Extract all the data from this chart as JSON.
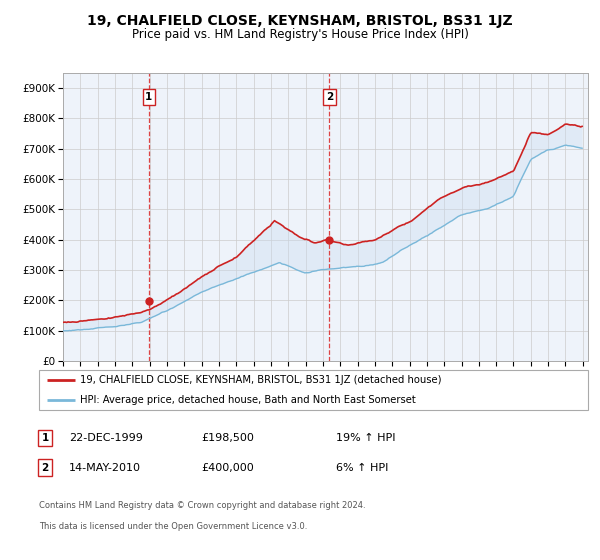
{
  "title": "19, CHALFIELD CLOSE, KEYNSHAM, BRISTOL, BS31 1JZ",
  "subtitle": "Price paid vs. HM Land Registry's House Price Index (HPI)",
  "legend_line1": "19, CHALFIELD CLOSE, KEYNSHAM, BRISTOL, BS31 1JZ (detached house)",
  "legend_line2": "HPI: Average price, detached house, Bath and North East Somerset",
  "transaction1_date": "22-DEC-1999",
  "transaction1_price": 198500,
  "transaction1_note": "19% ↑ HPI",
  "transaction2_date": "14-MAY-2010",
  "transaction2_price": 400000,
  "transaction2_note": "6% ↑ HPI",
  "footer_line1": "Contains HM Land Registry data © Crown copyright and database right 2024.",
  "footer_line2": "This data is licensed under the Open Government Licence v3.0.",
  "hpi_color": "#7ab8d9",
  "price_color": "#cc2222",
  "vline_color": "#dd4444",
  "fill_color": "#c8dcf0",
  "background_color": "#ffffff",
  "grid_color": "#cccccc",
  "chart_bg": "#eef3fa",
  "ylim": [
    0,
    950000
  ],
  "yticks": [
    0,
    100000,
    200000,
    300000,
    400000,
    500000,
    600000,
    700000,
    800000,
    900000
  ],
  "ytick_labels": [
    "£0",
    "£100K",
    "£200K",
    "£300K",
    "£400K",
    "£500K",
    "£600K",
    "£700K",
    "£800K",
    "£900K"
  ],
  "hpi_keypoints_x": [
    1995.0,
    1996.5,
    1998.0,
    1999.5,
    2001.0,
    2003.0,
    2005.0,
    2007.5,
    2009.0,
    2010.0,
    2012.0,
    2013.5,
    2015.0,
    2016.5,
    2018.0,
    2019.5,
    2021.0,
    2022.0,
    2023.0,
    2024.0,
    2024.9
  ],
  "hpi_keypoints_y": [
    100000,
    108000,
    118000,
    130000,
    165000,
    225000,
    270000,
    320000,
    285000,
    295000,
    300000,
    315000,
    370000,
    420000,
    470000,
    490000,
    530000,
    650000,
    680000,
    700000,
    690000
  ],
  "price_keypoints_x": [
    1995.0,
    1996.5,
    1998.0,
    1999.5,
    2000.0,
    2001.0,
    2003.0,
    2005.0,
    2007.2,
    2008.5,
    2009.5,
    2010.2,
    2011.5,
    2013.0,
    2015.0,
    2016.5,
    2018.0,
    2019.5,
    2021.0,
    2022.0,
    2023.0,
    2024.0,
    2024.9
  ],
  "price_keypoints_y": [
    128000,
    138000,
    152000,
    165000,
    175000,
    210000,
    285000,
    350000,
    470000,
    420000,
    390000,
    400000,
    380000,
    400000,
    460000,
    530000,
    580000,
    600000,
    640000,
    770000,
    760000,
    790000,
    780000
  ]
}
